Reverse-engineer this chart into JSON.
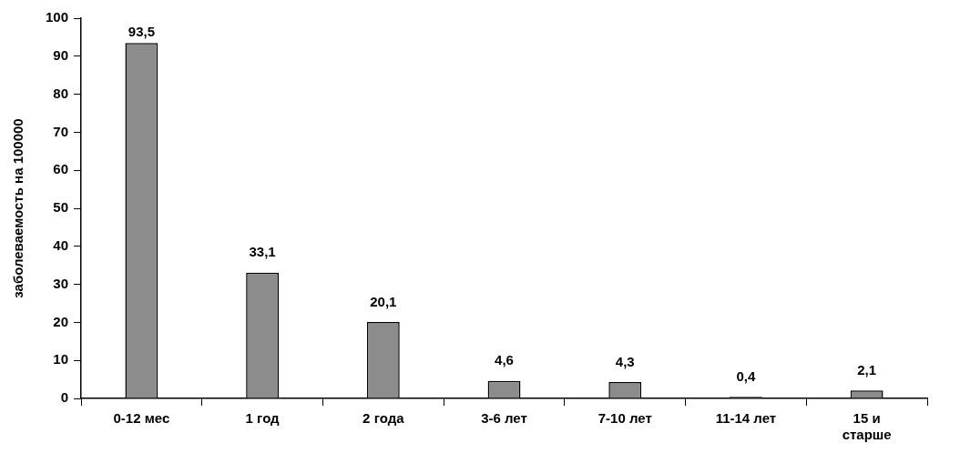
{
  "chart_data": {
    "type": "bar",
    "ylabel": "заболеваемость на 100000",
    "categories": [
      "0-12 мес",
      "1 год",
      "2 года",
      "3-6 лет",
      "7-10 лет",
      "11-14 лет",
      "15 и старше"
    ],
    "values": [
      93.5,
      33.1,
      20.1,
      4.6,
      4.3,
      0.4,
      2.1
    ],
    "value_labels": [
      "93,5",
      "33,1",
      "20,1",
      "4,6",
      "4,3",
      "0,4",
      "2,1"
    ],
    "color": "#8c8c8c",
    "ylim": [
      0,
      100
    ],
    "yticks": [
      0,
      10,
      20,
      30,
      40,
      50,
      60,
      70,
      80,
      90,
      100
    ],
    "grid": false,
    "legend": false
  }
}
